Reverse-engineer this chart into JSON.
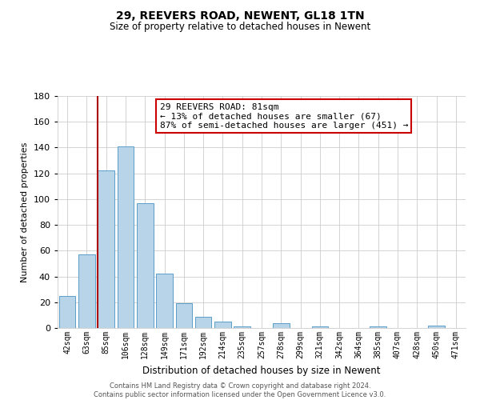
{
  "title": "29, REEVERS ROAD, NEWENT, GL18 1TN",
  "subtitle": "Size of property relative to detached houses in Newent",
  "xlabel": "Distribution of detached houses by size in Newent",
  "ylabel": "Number of detached properties",
  "categories": [
    "42sqm",
    "63sqm",
    "85sqm",
    "106sqm",
    "128sqm",
    "149sqm",
    "171sqm",
    "192sqm",
    "214sqm",
    "235sqm",
    "257sqm",
    "278sqm",
    "299sqm",
    "321sqm",
    "342sqm",
    "364sqm",
    "385sqm",
    "407sqm",
    "428sqm",
    "450sqm",
    "471sqm"
  ],
  "values": [
    25,
    57,
    122,
    141,
    97,
    42,
    19,
    9,
    5,
    1,
    0,
    4,
    0,
    1,
    0,
    0,
    1,
    0,
    0,
    2,
    0
  ],
  "bar_color": "#b8d4e8",
  "bar_edge_color": "#5a9ec8",
  "highlight_index": 2,
  "highlight_color": "#aa0000",
  "ylim": [
    0,
    180
  ],
  "yticks": [
    0,
    20,
    40,
    60,
    80,
    100,
    120,
    140,
    160,
    180
  ],
  "annotation_title": "29 REEVERS ROAD: 81sqm",
  "annotation_line1": "← 13% of detached houses are smaller (67)",
  "annotation_line2": "87% of semi-detached houses are larger (451) →",
  "annotation_box_color": "#ffffff",
  "annotation_box_edge": "#cc0000",
  "footer_line1": "Contains HM Land Registry data © Crown copyright and database right 2024.",
  "footer_line2": "Contains public sector information licensed under the Open Government Licence v3.0.",
  "background_color": "#ffffff",
  "grid_color": "#cccccc"
}
